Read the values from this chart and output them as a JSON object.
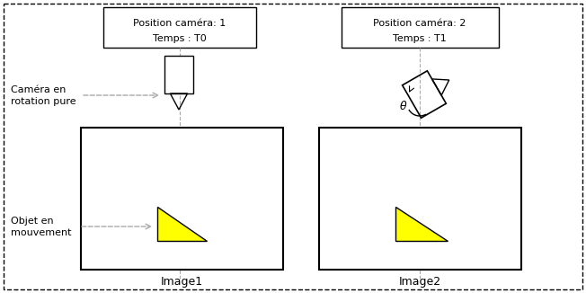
{
  "bg_color": "#ffffff",
  "yellow": "#ffff00",
  "gray": "#aaaaaa",
  "label_camera_en": "Caméra en",
  "label_camera_rot": "rotation pure",
  "label_objet": "Objet en",
  "label_mouvement": "mouvement",
  "label_image1": "Image1",
  "label_image2": "Image2",
  "box1_title1": "Position caméra: 1",
  "box1_title2": "Temps : T0",
  "box2_title1": "Position caméra: 2",
  "box2_title2": "Temps : T1",
  "theta_label": "θ",
  "fig_width": 6.52,
  "fig_height": 3.26
}
